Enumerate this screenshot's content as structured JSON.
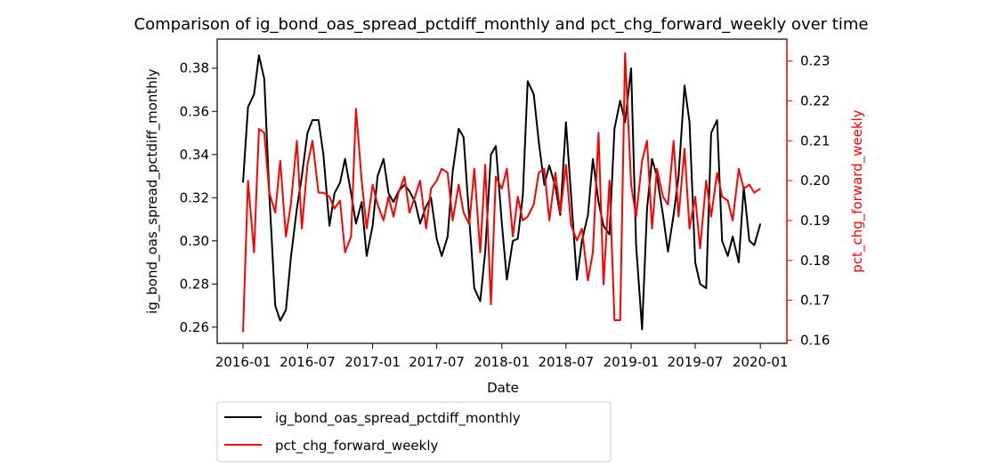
{
  "chart_data": {
    "type": "line",
    "title": "Comparison of ig_bond_oas_spread_pctdiff_monthly and pct_chg_forward_weekly over time",
    "xlabel": "Date",
    "ylabel_left": "ig_bond_oas_spread_pctdiff_monthly",
    "ylabel_right": "pct_chg_forward_weekly",
    "xlim": [
      "2015-10-20",
      "2020-03-16"
    ],
    "ylim_left": [
      0.2525,
      0.3935
    ],
    "ylim_right": [
      0.1592,
      0.2355
    ],
    "x_ticks": [
      "2016-01",
      "2016-07",
      "2017-01",
      "2017-07",
      "2018-01",
      "2018-07",
      "2019-01",
      "2019-07",
      "2020-01"
    ],
    "y_ticks_left": [
      0.26,
      0.28,
      0.3,
      0.32,
      0.34,
      0.36,
      0.38
    ],
    "y_ticks_right": [
      0.16,
      0.17,
      0.18,
      0.19,
      0.2,
      0.21,
      0.22,
      0.23
    ],
    "grid": false,
    "legend": "below-left",
    "colors": {
      "left_series": "#000000",
      "right_series": "#ff0000",
      "right_axis": "#ff0000"
    },
    "series": [
      {
        "name": "ig_bond_oas_spread_pctdiff_monthly",
        "axis": "left",
        "color": "#000000",
        "x": [
          "2016-01-01",
          "2016-01-15",
          "2016-02-01",
          "2016-02-15",
          "2016-03-01",
          "2016-03-15",
          "2016-04-01",
          "2016-04-15",
          "2016-05-01",
          "2016-05-15",
          "2016-06-01",
          "2016-06-15",
          "2016-07-01",
          "2016-07-15",
          "2016-08-01",
          "2016-08-15",
          "2016-09-01",
          "2016-09-15",
          "2016-10-01",
          "2016-10-15",
          "2016-11-01",
          "2016-11-15",
          "2016-12-01",
          "2016-12-15",
          "2017-01-01",
          "2017-01-15",
          "2017-02-01",
          "2017-02-15",
          "2017-03-01",
          "2017-03-15",
          "2017-04-01",
          "2017-04-15",
          "2017-05-01",
          "2017-05-15",
          "2017-06-01",
          "2017-06-15",
          "2017-07-01",
          "2017-07-15",
          "2017-08-01",
          "2017-08-15",
          "2017-09-01",
          "2017-09-15",
          "2017-10-01",
          "2017-10-15",
          "2017-11-01",
          "2017-11-15",
          "2017-12-01",
          "2017-12-15",
          "2018-01-01",
          "2018-01-15",
          "2018-02-01",
          "2018-02-15",
          "2018-03-01",
          "2018-03-15",
          "2018-04-01",
          "2018-04-15",
          "2018-05-01",
          "2018-05-15",
          "2018-06-01",
          "2018-06-15",
          "2018-07-01",
          "2018-07-15",
          "2018-08-01",
          "2018-08-15",
          "2018-09-01",
          "2018-09-15",
          "2018-10-01",
          "2018-10-15",
          "2018-11-01",
          "2018-11-15",
          "2018-12-01",
          "2018-12-15",
          "2019-01-01",
          "2019-01-15",
          "2019-02-01",
          "2019-02-15",
          "2019-03-01",
          "2019-03-15",
          "2019-04-01",
          "2019-04-15",
          "2019-05-01",
          "2019-05-15",
          "2019-06-01",
          "2019-06-15",
          "2019-07-01",
          "2019-07-15",
          "2019-08-01",
          "2019-08-15",
          "2019-09-01",
          "2019-09-15",
          "2019-10-01",
          "2019-10-15",
          "2019-11-01",
          "2019-11-15",
          "2019-12-01",
          "2019-12-15",
          "2020-01-01"
        ],
        "values": [
          0.327,
          0.362,
          0.368,
          0.386,
          0.375,
          0.322,
          0.27,
          0.263,
          0.268,
          0.292,
          0.315,
          0.33,
          0.35,
          0.356,
          0.356,
          0.34,
          0.307,
          0.322,
          0.327,
          0.338,
          0.322,
          0.308,
          0.318,
          0.293,
          0.307,
          0.33,
          0.338,
          0.322,
          0.318,
          0.323,
          0.326,
          0.323,
          0.318,
          0.308,
          0.316,
          0.32,
          0.301,
          0.293,
          0.302,
          0.332,
          0.352,
          0.348,
          0.31,
          0.278,
          0.272,
          0.295,
          0.34,
          0.344,
          0.308,
          0.282,
          0.3,
          0.301,
          0.321,
          0.374,
          0.368,
          0.346,
          0.326,
          0.335,
          0.325,
          0.312,
          0.355,
          0.322,
          0.282,
          0.3,
          0.312,
          0.338,
          0.318,
          0.307,
          0.303,
          0.352,
          0.365,
          0.355,
          0.38,
          0.298,
          0.259,
          0.315,
          0.338,
          0.33,
          0.312,
          0.295,
          0.312,
          0.33,
          0.372,
          0.355,
          0.29,
          0.28,
          0.278,
          0.35,
          0.356,
          0.3,
          0.293,
          0.302,
          0.29,
          0.325,
          0.3,
          0.298,
          0.308
        ]
      },
      {
        "name": "pct_chg_forward_weekly",
        "axis": "right",
        "color": "#ff0000",
        "x": [
          "2016-01-01",
          "2016-01-15",
          "2016-02-01",
          "2016-02-15",
          "2016-03-01",
          "2016-03-15",
          "2016-04-01",
          "2016-04-15",
          "2016-05-01",
          "2016-05-15",
          "2016-06-01",
          "2016-06-15",
          "2016-07-01",
          "2016-07-15",
          "2016-08-01",
          "2016-08-15",
          "2016-09-01",
          "2016-09-15",
          "2016-10-01",
          "2016-10-15",
          "2016-11-01",
          "2016-11-15",
          "2016-12-01",
          "2016-12-15",
          "2017-01-01",
          "2017-01-15",
          "2017-02-01",
          "2017-02-15",
          "2017-03-01",
          "2017-03-15",
          "2017-04-01",
          "2017-04-15",
          "2017-05-01",
          "2017-05-15",
          "2017-06-01",
          "2017-06-15",
          "2017-07-01",
          "2017-07-15",
          "2017-08-01",
          "2017-08-15",
          "2017-09-01",
          "2017-09-15",
          "2017-10-01",
          "2017-10-15",
          "2017-11-01",
          "2017-11-15",
          "2017-12-01",
          "2017-12-15",
          "2018-01-01",
          "2018-01-15",
          "2018-02-01",
          "2018-02-15",
          "2018-03-01",
          "2018-03-15",
          "2018-04-01",
          "2018-04-15",
          "2018-05-01",
          "2018-05-15",
          "2018-06-01",
          "2018-06-15",
          "2018-07-01",
          "2018-07-15",
          "2018-08-01",
          "2018-08-15",
          "2018-09-01",
          "2018-09-15",
          "2018-10-01",
          "2018-10-15",
          "2018-11-01",
          "2018-11-15",
          "2018-12-01",
          "2018-12-15",
          "2019-01-01",
          "2019-01-15",
          "2019-02-01",
          "2019-02-15",
          "2019-03-01",
          "2019-03-15",
          "2019-04-01",
          "2019-04-15",
          "2019-05-01",
          "2019-05-15",
          "2019-06-01",
          "2019-06-15",
          "2019-07-01",
          "2019-07-15",
          "2019-08-01",
          "2019-08-15",
          "2019-09-01",
          "2019-09-15",
          "2019-10-01",
          "2019-10-15",
          "2019-11-01",
          "2019-11-15",
          "2019-12-01",
          "2019-12-15",
          "2020-01-01"
        ],
        "values": [
          0.162,
          0.2,
          0.182,
          0.213,
          0.212,
          0.197,
          0.192,
          0.205,
          0.186,
          0.194,
          0.21,
          0.188,
          0.204,
          0.21,
          0.197,
          0.197,
          0.196,
          0.193,
          0.195,
          0.182,
          0.186,
          0.218,
          0.2,
          0.188,
          0.199,
          0.194,
          0.19,
          0.196,
          0.191,
          0.197,
          0.201,
          0.192,
          0.196,
          0.2,
          0.188,
          0.198,
          0.2,
          0.203,
          0.202,
          0.19,
          0.199,
          0.192,
          0.189,
          0.203,
          0.182,
          0.204,
          0.169,
          0.201,
          0.198,
          0.203,
          0.186,
          0.196,
          0.19,
          0.191,
          0.194,
          0.202,
          0.203,
          0.19,
          0.202,
          0.192,
          0.204,
          0.189,
          0.185,
          0.188,
          0.175,
          0.182,
          0.212,
          0.174,
          0.2,
          0.165,
          0.165,
          0.232,
          0.199,
          0.191,
          0.205,
          0.21,
          0.188,
          0.203,
          0.196,
          0.194,
          0.21,
          0.191,
          0.208,
          0.188,
          0.196,
          0.183,
          0.2,
          0.191,
          0.202,
          0.196,
          0.195,
          0.19,
          0.203,
          0.198,
          0.199,
          0.197,
          0.198
        ]
      }
    ]
  }
}
